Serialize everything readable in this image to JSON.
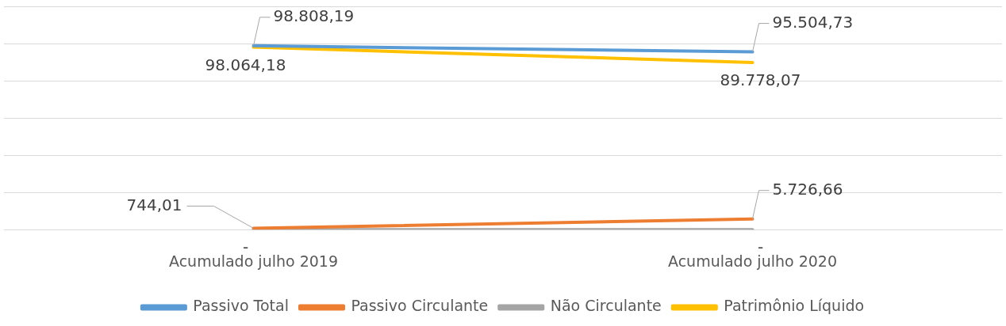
{
  "chart_data": {
    "type": "line",
    "categories": [
      "Acumulado julho 2019",
      "Acumulado julho 2020"
    ],
    "series": [
      {
        "name": "Passivo Total",
        "color": "#5b9bd5",
        "values": [
          98808.19,
          95504.73
        ],
        "value_labels": [
          "98.808,19",
          "95.504,73"
        ]
      },
      {
        "name": "Passivo Circulante",
        "color": "#ed7d31",
        "values": [
          744.01,
          5726.66
        ],
        "value_labels": [
          "744,01",
          "5.726,66"
        ]
      },
      {
        "name": "Não Circulante",
        "color": "#a5a5a5",
        "values": [
          0,
          0
        ],
        "value_labels": [
          "-",
          "-"
        ]
      },
      {
        "name": "Patrimônio Líquido",
        "color": "#ffc000",
        "values": [
          98064.18,
          89778.07
        ],
        "value_labels": [
          "98.064,18",
          "89.778,07"
        ]
      }
    ],
    "ylim": [
      0,
      120000
    ],
    "yticks": [
      {
        "value": 0,
        "label": null
      },
      {
        "value": 20000,
        "label": null
      },
      {
        "value": 40000,
        "label": null
      },
      {
        "value": 60000,
        "label": null
      },
      {
        "value": 80000,
        "label": null
      },
      {
        "value": 100000,
        "label": null
      },
      {
        "value": 120000,
        "label": null
      }
    ],
    "grid": "y",
    "legend": "bottom",
    "tick_labels": "x",
    "marker": "none",
    "line_style": "solid"
  }
}
